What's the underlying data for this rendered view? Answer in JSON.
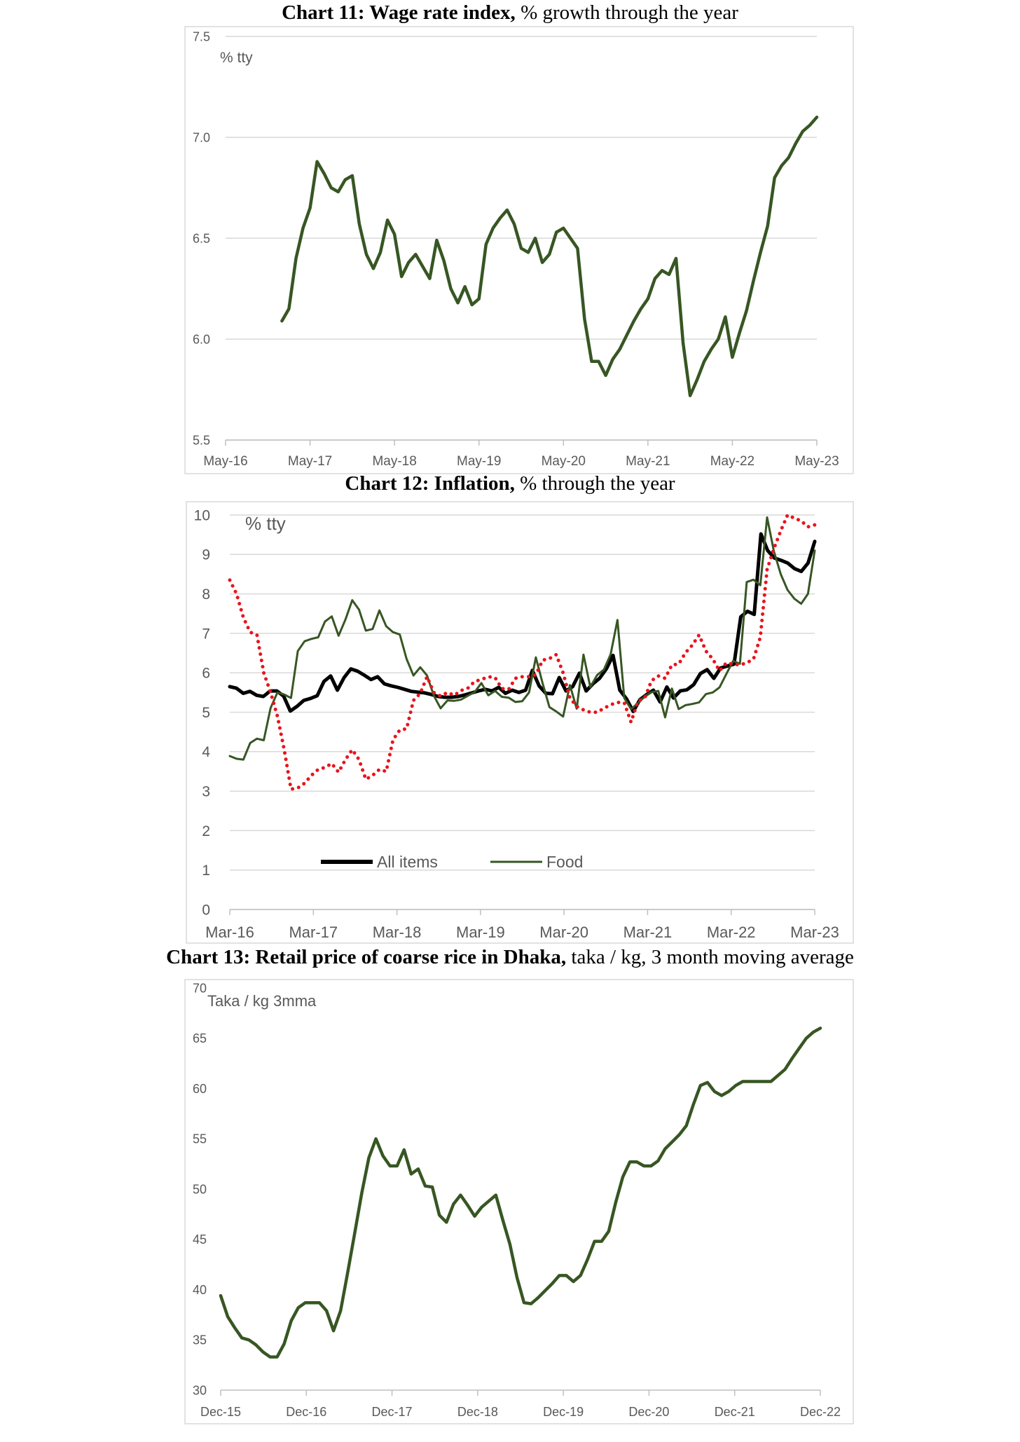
{
  "charts": [
    {
      "title_bold": "Chart 11: Wage rate index,",
      "title_rest": " % growth through the year"
    },
    {
      "title_bold": "Chart 12: Inflation,",
      "title_rest": " % through the year"
    },
    {
      "title_bold": "Chart 13: Retail price of coarse rice in Dhaka,",
      "title_rest": " taka / kg, 3 month moving average"
    }
  ],
  "colors": {
    "green": "#375623",
    "black": "#000000",
    "red": "#e8141c",
    "grid": "#d9d9d9",
    "axis_text": "#595959"
  },
  "chart_data": [
    {
      "type": "line",
      "title": "Chart 11: Wage rate index, % growth through the year",
      "unit_label": "% tty",
      "x_tick_labels": [
        "May-16",
        "May-17",
        "May-18",
        "May-19",
        "May-20",
        "May-21",
        "May-22",
        "May-23"
      ],
      "y_tick_labels": [
        "5.5",
        "6.0",
        "6.5",
        "7.0",
        "7.5"
      ],
      "ylim": [
        5.5,
        7.5
      ],
      "x_start": "May-16",
      "x_end": "May-23",
      "grid": true,
      "series": [
        {
          "color": "#375623",
          "x": [
            "Jan-17",
            "Feb-17",
            "Mar-17",
            "Apr-17",
            "May-17",
            "Jun-17",
            "Jul-17",
            "Aug-17",
            "Sep-17",
            "Oct-17",
            "Nov-17",
            "Dec-17",
            "Jan-18",
            "Feb-18",
            "Mar-18",
            "Apr-18",
            "May-18",
            "Jun-18",
            "Jul-18",
            "Aug-18",
            "Sep-18",
            "Oct-18",
            "Nov-18",
            "Dec-18",
            "Jan-19",
            "Feb-19",
            "Mar-19",
            "Apr-19",
            "May-19",
            "Jun-19",
            "Jul-19",
            "Aug-19",
            "Sep-19",
            "Oct-19",
            "Nov-19",
            "Dec-19",
            "Jan-20",
            "Feb-20",
            "Mar-20",
            "Apr-20",
            "May-20",
            "Jun-20",
            "Jul-20",
            "Aug-20",
            "Sep-20",
            "Oct-20",
            "Nov-20",
            "Dec-20",
            "Jan-21",
            "Feb-21",
            "Mar-21",
            "Apr-21",
            "May-21",
            "Jun-21",
            "Jul-21",
            "Aug-21",
            "Sep-21",
            "Oct-21",
            "Nov-21",
            "Dec-21",
            "Jan-22",
            "Feb-22",
            "Mar-22",
            "Apr-22",
            "May-22",
            "Jun-22",
            "Jul-22",
            "Aug-22",
            "Sep-22",
            "Oct-22",
            "Nov-22",
            "Dec-22",
            "Jan-23",
            "Feb-23",
            "Mar-23",
            "Apr-23",
            "May-23"
          ],
          "values": [
            6.09,
            6.15,
            6.4,
            6.55,
            6.65,
            6.88,
            6.82,
            6.75,
            6.73,
            6.79,
            6.81,
            6.57,
            6.42,
            6.35,
            6.43,
            6.59,
            6.52,
            6.31,
            6.38,
            6.42,
            6.36,
            6.3,
            6.49,
            6.39,
            6.25,
            6.18,
            6.26,
            6.17,
            6.2,
            6.47,
            6.55,
            6.6,
            6.64,
            6.57,
            6.45,
            6.43,
            6.5,
            6.38,
            6.42,
            6.53,
            6.55,
            6.5,
            6.45,
            6.1,
            5.89,
            5.89,
            5.82,
            5.9,
            5.95,
            6.02,
            6.09,
            6.15,
            6.2,
            6.3,
            6.34,
            6.32,
            6.4,
            5.98,
            5.72,
            5.8,
            5.89,
            5.95,
            6.0,
            6.11,
            5.91,
            6.03,
            6.14,
            6.29,
            6.43,
            6.56,
            6.8,
            6.86,
            6.9,
            6.97,
            7.03,
            7.06,
            7.1
          ]
        }
      ]
    },
    {
      "type": "line",
      "title": "Chart 12: Inflation, % through the year",
      "unit_label": "% tty",
      "x_tick_labels": [
        "Mar-16",
        "Mar-17",
        "Mar-18",
        "Mar-19",
        "Mar-20",
        "Mar-21",
        "Mar-22",
        "Mar-23"
      ],
      "y_tick_labels": [
        "0",
        "1",
        "2",
        "3",
        "4",
        "5",
        "6",
        "7",
        "8",
        "9",
        "10"
      ],
      "ylim": [
        0,
        10
      ],
      "x_start": "Mar-16",
      "x_end": "Mar-23",
      "grid": true,
      "legend": {
        "position": "bottom-left",
        "entries": [
          "All items",
          "Food"
        ]
      },
      "series": [
        {
          "name": "All items",
          "color": "#000000",
          "style": "solid-thick",
          "values": [
            5.65,
            5.61,
            5.48,
            5.53,
            5.43,
            5.4,
            5.54,
            5.54,
            5.41,
            5.03,
            5.15,
            5.3,
            5.35,
            5.42,
            5.78,
            5.92,
            5.56,
            5.88,
            6.1,
            6.04,
            5.94,
            5.83,
            5.9,
            5.72,
            5.67,
            5.63,
            5.58,
            5.53,
            5.51,
            5.49,
            5.45,
            5.4,
            5.38,
            5.38,
            5.4,
            5.44,
            5.49,
            5.54,
            5.58,
            5.54,
            5.63,
            5.48,
            5.56,
            5.5,
            5.56,
            6.06,
            5.67,
            5.48,
            5.47,
            5.88,
            5.54,
            5.65,
            5.99,
            5.54,
            5.72,
            5.86,
            6.1,
            6.44,
            5.56,
            5.34,
            5.02,
            5.32,
            5.45,
            5.56,
            5.26,
            5.64,
            5.36,
            5.54,
            5.57,
            5.7,
            5.98,
            6.08,
            5.86,
            6.12,
            6.17,
            6.22,
            7.42,
            7.56,
            7.48,
            9.52,
            9.1,
            8.91,
            8.85,
            8.78,
            8.64,
            8.57,
            8.78,
            9.33
          ]
        },
        {
          "name": "Food",
          "color": "#375623",
          "style": "solid-thin",
          "values": [
            3.89,
            3.82,
            3.8,
            4.22,
            4.33,
            4.29,
            5.11,
            5.5,
            5.45,
            5.36,
            6.55,
            6.8,
            6.86,
            6.9,
            7.3,
            7.43,
            6.94,
            7.35,
            7.84,
            7.6,
            7.07,
            7.11,
            7.58,
            7.18,
            7.03,
            6.97,
            6.35,
            5.93,
            6.14,
            5.93,
            5.42,
            5.1,
            5.3,
            5.29,
            5.32,
            5.42,
            5.51,
            5.74,
            5.43,
            5.54,
            5.39,
            5.37,
            5.26,
            5.28,
            5.5,
            6.39,
            5.73,
            5.13,
            5.02,
            4.89,
            5.69,
            5.09,
            6.46,
            5.64,
            5.94,
            6.08,
            6.47,
            7.34,
            5.36,
            5.08,
            5.23,
            5.4,
            5.51,
            5.54,
            4.87,
            5.6,
            5.08,
            5.18,
            5.21,
            5.25,
            5.46,
            5.5,
            5.63,
            5.97,
            6.3,
            6.23,
            8.3,
            8.36,
            8.22,
            9.94,
            9.08,
            8.5,
            8.1,
            7.88,
            7.75,
            8.0,
            9.1
          ]
        },
        {
          "name": "",
          "color": "#e8141c",
          "style": "dotted",
          "values": [
            8.35,
            8.0,
            7.4,
            7.03,
            6.96,
            6.0,
            5.5,
            4.9,
            4.05,
            3.05,
            3.08,
            3.2,
            3.4,
            3.55,
            3.6,
            3.7,
            3.48,
            3.8,
            4.05,
            3.8,
            3.3,
            3.4,
            3.55,
            3.5,
            4.3,
            4.55,
            4.58,
            5.3,
            5.48,
            5.9,
            5.5,
            5.41,
            5.5,
            5.43,
            5.55,
            5.61,
            5.78,
            5.83,
            5.9,
            5.88,
            5.6,
            5.58,
            5.86,
            5.9,
            5.9,
            5.95,
            6.32,
            6.36,
            6.46,
            6.0,
            5.36,
            5.15,
            5.06,
            5.0,
            5.0,
            5.1,
            5.19,
            5.25,
            5.24,
            4.75,
            5.28,
            5.36,
            5.8,
            5.92,
            5.86,
            6.2,
            6.22,
            6.51,
            6.7,
            6.96,
            6.55,
            6.35,
            6.05,
            6.25,
            6.22,
            6.2,
            6.25,
            6.35,
            6.9,
            8.62,
            9.15,
            9.6,
            10.0,
            9.92,
            9.85,
            9.7,
            9.75
          ]
        }
      ]
    },
    {
      "type": "line",
      "title": "Chart 13: Retail price of coarse rice in Dhaka, taka / kg, 3 month moving average",
      "unit_label": "Taka / kg 3mma",
      "x_tick_labels": [
        "Dec-15",
        "Dec-16",
        "Dec-17",
        "Dec-18",
        "Dec-19",
        "Dec-20",
        "Dec-21",
        "Dec-22"
      ],
      "y_tick_labels": [
        "30",
        "35",
        "40",
        "45",
        "50",
        "55",
        "60",
        "65",
        "70"
      ],
      "ylim": [
        30,
        70
      ],
      "x_start": "Dec-15",
      "x_end": "Dec-22",
      "grid": false,
      "series": [
        {
          "color": "#375623",
          "values": [
            39.4,
            37.3,
            36.2,
            35.2,
            35.0,
            34.5,
            33.8,
            33.3,
            33.3,
            34.6,
            36.9,
            38.2,
            38.7,
            38.7,
            38.7,
            37.9,
            35.9,
            37.9,
            41.7,
            45.6,
            49.6,
            53.1,
            55.0,
            53.3,
            52.3,
            52.3,
            53.9,
            51.5,
            52.0,
            50.3,
            50.2,
            47.4,
            46.7,
            48.5,
            49.4,
            48.4,
            47.3,
            48.2,
            48.8,
            49.4,
            46.9,
            44.5,
            41.2,
            38.7,
            38.6,
            39.2,
            39.9,
            40.6,
            41.4,
            41.4,
            40.8,
            41.4,
            43.0,
            44.8,
            44.8,
            45.8,
            48.7,
            51.2,
            52.7,
            52.7,
            52.3,
            52.3,
            52.8,
            54.0,
            54.7,
            55.4,
            56.3,
            58.4,
            60.3,
            60.6,
            59.7,
            59.3,
            59.7,
            60.3,
            60.7,
            60.7,
            60.7,
            60.7,
            60.7,
            61.3,
            61.9,
            63.0,
            64.0,
            65.0,
            65.6,
            66.0
          ]
        }
      ]
    }
  ]
}
